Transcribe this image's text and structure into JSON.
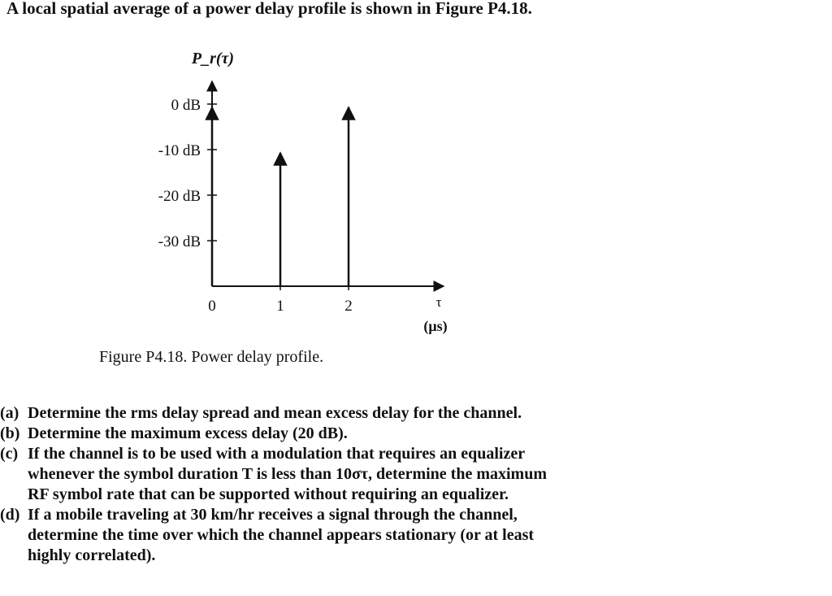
{
  "intro": "A local spatial average of a power delay profile is shown in Figure P4.18.",
  "chart_data": {
    "type": "stem",
    "ylabel": "P_r(τ)",
    "xlabel": "τ",
    "xunit": "(μs)",
    "xticks": [
      0,
      1,
      2
    ],
    "yticks": [
      "0 dB",
      "-10 dB",
      "-20 dB",
      "-30 dB"
    ],
    "y_tick_values": [
      0,
      -10,
      -20,
      -30
    ],
    "ylim": [
      -40,
      0
    ],
    "xlim": [
      0,
      3.4
    ],
    "points": [
      {
        "x": 0,
        "y": 0
      },
      {
        "x": 1,
        "y": -10
      },
      {
        "x": 2,
        "y": 0
      }
    ]
  },
  "caption": "Figure P4.18. Power delay profile.",
  "questions": [
    {
      "label": "(a)",
      "lines": [
        "Determine the rms delay spread and mean excess delay for the channel."
      ]
    },
    {
      "label": "(b)",
      "lines": [
        "Determine the maximum excess delay (20 dB)."
      ]
    },
    {
      "label": "(c)",
      "lines": [
        "If the channel is to be used with a modulation that requires an equalizer",
        "whenever the symbol duration T is less than 10στ, determine the maximum",
        "RF symbol rate that can be supported without requiring an equalizer."
      ]
    },
    {
      "label": "(d)",
      "lines": [
        "If a mobile traveling at 30 km/hr receives a signal through the channel,",
        "determine the time over which the channel appears stationary (or at least",
        "highly correlated)."
      ]
    }
  ]
}
